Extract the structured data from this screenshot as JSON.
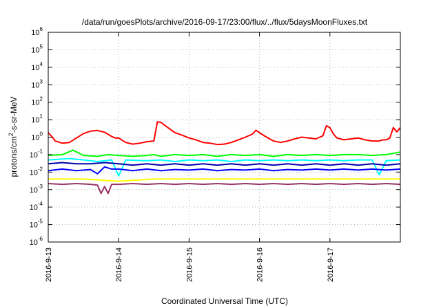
{
  "chart_data": {
    "type": "line",
    "title": "/data/run/goesPlots/archive/2016-09-17/23:00/flux/../flux/5daysMoonFluxes.txt",
    "xlabel": "Coordinated Universal Time (UTC)",
    "ylabel_parts": [
      "protons/cm",
      "2",
      "-s-sr-MeV"
    ],
    "y_scale": "log",
    "ylim": [
      1e-06,
      1000000.0
    ],
    "xlim_days": [
      0,
      5
    ],
    "x_ticks": [
      {
        "day": 0,
        "label": "2016-9-13"
      },
      {
        "day": 1,
        "label": "2016-9-14"
      },
      {
        "day": 2,
        "label": "2016-9-15"
      },
      {
        "day": 3,
        "label": "2016-9-16"
      },
      {
        "day": 4,
        "label": "2016-9-17"
      }
    ],
    "y_ticks": [
      {
        "exp": -6,
        "base": "10",
        "sup": "-6"
      },
      {
        "exp": -5,
        "base": "10",
        "sup": "-5"
      },
      {
        "exp": -4,
        "base": "10",
        "sup": "-4"
      },
      {
        "exp": -3,
        "base": "10",
        "sup": "-3"
      },
      {
        "exp": -2,
        "base": "10",
        "sup": "-2"
      },
      {
        "exp": -1,
        "base": "10",
        "sup": "-1"
      },
      {
        "exp": 0,
        "base": "10",
        "sup": "0"
      },
      {
        "exp": 1,
        "base": "10",
        "sup": "1"
      },
      {
        "exp": 2,
        "base": "10",
        "sup": "2"
      },
      {
        "exp": 3,
        "base": "10",
        "sup": "3"
      },
      {
        "exp": 4,
        "base": "10",
        "sup": "4"
      },
      {
        "exp": 5,
        "base": "10",
        "sup": "5"
      },
      {
        "exp": 6,
        "base": "10",
        "sup": "6"
      }
    ],
    "grid": true,
    "legend": "none",
    "series": [
      {
        "color": "#ff0000",
        "points": [
          [
            0.0,
            1.8
          ],
          [
            0.05,
            1.1
          ],
          [
            0.1,
            0.6
          ],
          [
            0.2,
            0.45
          ],
          [
            0.3,
            0.5
          ],
          [
            0.4,
            0.9
          ],
          [
            0.5,
            1.6
          ],
          [
            0.6,
            2.2
          ],
          [
            0.7,
            2.4
          ],
          [
            0.8,
            1.9
          ],
          [
            0.9,
            1.1
          ],
          [
            0.95,
            0.9
          ],
          [
            1.0,
            0.9
          ],
          [
            1.1,
            0.5
          ],
          [
            1.2,
            0.4
          ],
          [
            1.3,
            0.45
          ],
          [
            1.4,
            0.55
          ],
          [
            1.5,
            0.6
          ],
          [
            1.55,
            7.5
          ],
          [
            1.6,
            7.0
          ],
          [
            1.7,
            3.5
          ],
          [
            1.8,
            1.8
          ],
          [
            1.9,
            1.3
          ],
          [
            2.0,
            0.9
          ],
          [
            2.1,
            0.7
          ],
          [
            2.2,
            0.5
          ],
          [
            2.3,
            0.45
          ],
          [
            2.4,
            0.38
          ],
          [
            2.5,
            0.4
          ],
          [
            2.6,
            0.5
          ],
          [
            2.7,
            0.7
          ],
          [
            2.8,
            1.0
          ],
          [
            2.9,
            1.5
          ],
          [
            2.95,
            2.5
          ],
          [
            3.0,
            1.8
          ],
          [
            3.1,
            1.0
          ],
          [
            3.2,
            0.6
          ],
          [
            3.3,
            0.5
          ],
          [
            3.4,
            0.6
          ],
          [
            3.5,
            0.8
          ],
          [
            3.6,
            1.0
          ],
          [
            3.7,
            0.9
          ],
          [
            3.8,
            0.8
          ],
          [
            3.9,
            1.2
          ],
          [
            3.95,
            4.5
          ],
          [
            4.0,
            3.5
          ],
          [
            4.05,
            1.5
          ],
          [
            4.1,
            0.9
          ],
          [
            4.2,
            0.7
          ],
          [
            4.3,
            0.8
          ],
          [
            4.4,
            0.9
          ],
          [
            4.5,
            0.7
          ],
          [
            4.6,
            0.6
          ],
          [
            4.7,
            0.6
          ],
          [
            4.75,
            0.7
          ],
          [
            4.8,
            0.7
          ],
          [
            4.85,
            0.9
          ],
          [
            4.9,
            3.5
          ],
          [
            4.95,
            2.0
          ],
          [
            5.0,
            3.5
          ]
        ]
      },
      {
        "color": "#00ff00",
        "points": [
          [
            0.0,
            0.09
          ],
          [
            0.2,
            0.1
          ],
          [
            0.35,
            0.18
          ],
          [
            0.5,
            0.09
          ],
          [
            0.7,
            0.08
          ],
          [
            0.85,
            0.1
          ],
          [
            1.0,
            0.09
          ],
          [
            1.2,
            0.08
          ],
          [
            1.4,
            0.09
          ],
          [
            1.5,
            0.1
          ],
          [
            1.6,
            0.08
          ],
          [
            1.8,
            0.1
          ],
          [
            2.0,
            0.09
          ],
          [
            2.2,
            0.1
          ],
          [
            2.4,
            0.08
          ],
          [
            2.6,
            0.1
          ],
          [
            2.8,
            0.09
          ],
          [
            3.0,
            0.1
          ],
          [
            3.2,
            0.08
          ],
          [
            3.4,
            0.1
          ],
          [
            3.6,
            0.09
          ],
          [
            3.8,
            0.1
          ],
          [
            4.0,
            0.09
          ],
          [
            4.2,
            0.1
          ],
          [
            4.4,
            0.1
          ],
          [
            4.6,
            0.09
          ],
          [
            4.8,
            0.1
          ],
          [
            5.0,
            0.14
          ]
        ]
      },
      {
        "color": "#00ffff",
        "points": [
          [
            0.0,
            0.05
          ],
          [
            0.3,
            0.06
          ],
          [
            0.5,
            0.05
          ],
          [
            0.7,
            0.04
          ],
          [
            0.9,
            0.05
          ],
          [
            1.0,
            0.006
          ],
          [
            1.1,
            0.05
          ],
          [
            1.4,
            0.045
          ],
          [
            1.6,
            0.05
          ],
          [
            1.8,
            0.04
          ],
          [
            2.0,
            0.05
          ],
          [
            2.2,
            0.045
          ],
          [
            2.4,
            0.05
          ],
          [
            2.6,
            0.04
          ],
          [
            2.8,
            0.05
          ],
          [
            3.0,
            0.045
          ],
          [
            3.2,
            0.05
          ],
          [
            3.4,
            0.045
          ],
          [
            3.6,
            0.05
          ],
          [
            3.8,
            0.045
          ],
          [
            4.0,
            0.05
          ],
          [
            4.2,
            0.045
          ],
          [
            4.4,
            0.05
          ],
          [
            4.6,
            0.05
          ],
          [
            4.7,
            0.007
          ],
          [
            4.8,
            0.045
          ],
          [
            5.0,
            0.05
          ]
        ]
      },
      {
        "color": "#0000ff",
        "points": [
          [
            0.0,
            0.012
          ],
          [
            0.2,
            0.015
          ],
          [
            0.4,
            0.012
          ],
          [
            0.6,
            0.014
          ],
          [
            0.7,
            0.008
          ],
          [
            0.8,
            0.02
          ],
          [
            0.9,
            0.015
          ],
          [
            1.0,
            0.015
          ],
          [
            1.2,
            0.012
          ],
          [
            1.4,
            0.015
          ],
          [
            1.6,
            0.012
          ],
          [
            1.8,
            0.014
          ],
          [
            2.0,
            0.013
          ],
          [
            2.2,
            0.015
          ],
          [
            2.4,
            0.012
          ],
          [
            2.6,
            0.014
          ],
          [
            2.8,
            0.013
          ],
          [
            3.0,
            0.015
          ],
          [
            3.2,
            0.012
          ],
          [
            3.4,
            0.014
          ],
          [
            3.6,
            0.013
          ],
          [
            3.8,
            0.015
          ],
          [
            4.0,
            0.013
          ],
          [
            4.2,
            0.015
          ],
          [
            4.4,
            0.013
          ],
          [
            4.6,
            0.015
          ],
          [
            4.8,
            0.013
          ],
          [
            5.0,
            0.015
          ]
        ]
      },
      {
        "color": "#0000aa",
        "points": [
          [
            0.0,
            0.03
          ],
          [
            0.2,
            0.035
          ],
          [
            0.4,
            0.03
          ],
          [
            0.6,
            0.03
          ],
          [
            0.8,
            0.035
          ],
          [
            1.0,
            0.03
          ],
          [
            1.2,
            0.025
          ],
          [
            1.4,
            0.03
          ],
          [
            1.6,
            0.025
          ],
          [
            1.8,
            0.03
          ],
          [
            2.0,
            0.025
          ],
          [
            2.2,
            0.03
          ],
          [
            2.4,
            0.025
          ],
          [
            2.6,
            0.03
          ],
          [
            2.8,
            0.025
          ],
          [
            3.0,
            0.03
          ],
          [
            3.2,
            0.025
          ],
          [
            3.4,
            0.03
          ],
          [
            3.6,
            0.025
          ],
          [
            3.8,
            0.03
          ],
          [
            4.0,
            0.025
          ],
          [
            4.2,
            0.03
          ],
          [
            4.4,
            0.025
          ],
          [
            4.6,
            0.03
          ],
          [
            4.8,
            0.025
          ],
          [
            5.0,
            0.03
          ]
        ]
      },
      {
        "color": "#ffff00",
        "points": [
          [
            0.0,
            0.004
          ],
          [
            0.5,
            0.004
          ],
          [
            1.0,
            0.003
          ],
          [
            1.5,
            0.004
          ],
          [
            2.0,
            0.004
          ],
          [
            2.5,
            0.004
          ],
          [
            3.0,
            0.004
          ],
          [
            3.5,
            0.004
          ],
          [
            4.0,
            0.004
          ],
          [
            4.5,
            0.004
          ],
          [
            5.0,
            0.004
          ]
        ]
      },
      {
        "color": "#993366",
        "points": [
          [
            0.0,
            0.0022
          ],
          [
            0.2,
            0.002
          ],
          [
            0.4,
            0.0022
          ],
          [
            0.6,
            0.002
          ],
          [
            0.7,
            0.0018
          ],
          [
            0.75,
            0.0006
          ],
          [
            0.8,
            0.0015
          ],
          [
            0.85,
            0.0006
          ],
          [
            0.9,
            0.002
          ],
          [
            1.0,
            0.002
          ],
          [
            1.2,
            0.0022
          ],
          [
            1.4,
            0.002
          ],
          [
            1.6,
            0.0022
          ],
          [
            1.8,
            0.002
          ],
          [
            2.0,
            0.0022
          ],
          [
            2.2,
            0.002
          ],
          [
            2.4,
            0.0022
          ],
          [
            2.6,
            0.002
          ],
          [
            2.8,
            0.0022
          ],
          [
            3.0,
            0.002
          ],
          [
            3.2,
            0.0022
          ],
          [
            3.4,
            0.002
          ],
          [
            3.6,
            0.0022
          ],
          [
            3.8,
            0.002
          ],
          [
            4.0,
            0.0022
          ],
          [
            4.2,
            0.002
          ],
          [
            4.4,
            0.0022
          ],
          [
            4.6,
            0.002
          ],
          [
            4.8,
            0.0022
          ],
          [
            5.0,
            0.002
          ]
        ]
      }
    ]
  }
}
